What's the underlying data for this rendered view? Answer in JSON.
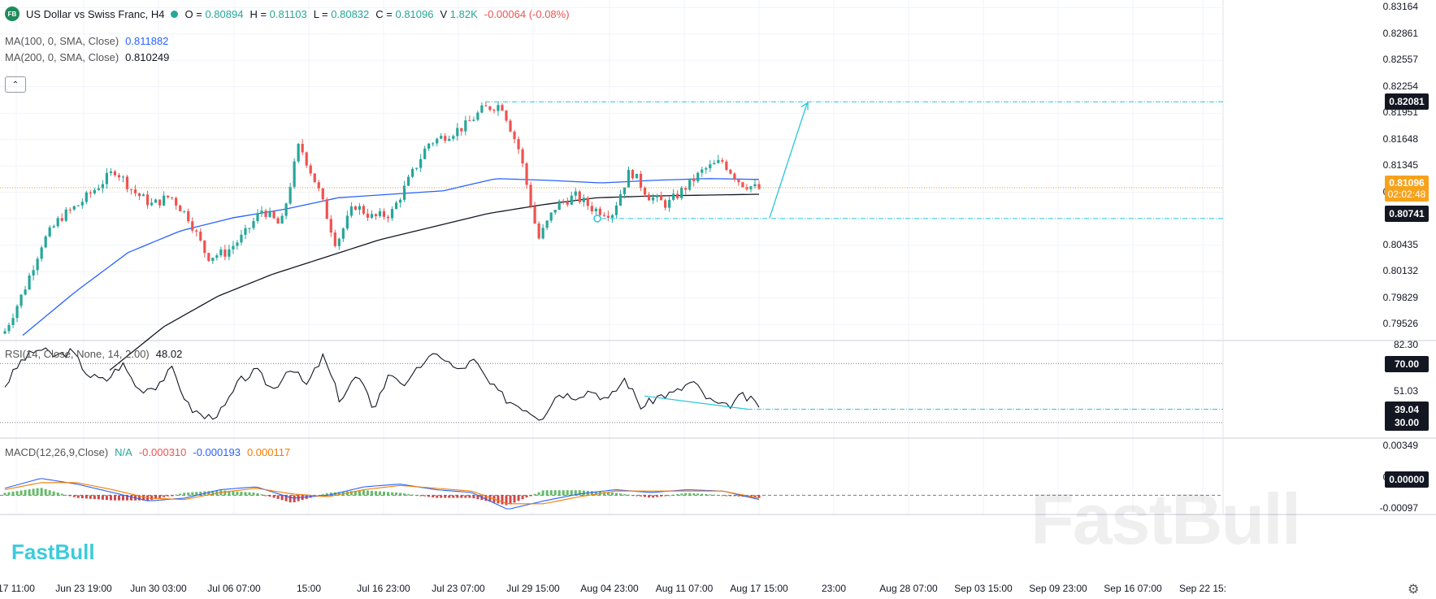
{
  "header": {
    "logo_text": "FB",
    "title": "US Dollar vs Swiss Franc, H4",
    "open_label": "O =",
    "open": "0.80894",
    "high_label": "H =",
    "high": "0.81103",
    "low_label": "L =",
    "low": "0.80832",
    "close_label": "C =",
    "close": "0.81096",
    "volume_label": "V",
    "volume": "1.82K",
    "change": "-0.00064 (-0.08%)"
  },
  "indicators": {
    "ma100_label": "MA(100, 0, SMA, Close)",
    "ma100_value": "0.811882",
    "ma200_label": "MA(200, 0, SMA, Close)",
    "ma200_value": "0.810249",
    "rsi_label": "RSI(14, Close, None, 14, 2.00)",
    "rsi_value": "48.02",
    "macd_label": "MACD(12,26,9,Close)",
    "macd_na": "N/A",
    "macd_v1": "-0.000310",
    "macd_v2": "-0.000193",
    "macd_v3": "0.000117",
    "collapse_icon": "chevron-up-icon"
  },
  "tags": {
    "target": "0.82081",
    "current_price": "0.81096",
    "countdown": "02:02:48",
    "support": "0.80741",
    "rsi_70": "70.00",
    "rsi_level": "39.04",
    "rsi_30": "30.00",
    "macd_zero": "0.00000"
  },
  "watermark": {
    "large": "FastBull",
    "small": "FastBull"
  },
  "settings_icon": "gear-icon",
  "colors": {
    "up": "#26a69a",
    "down": "#ef5350",
    "ma100": "#2962ff",
    "ma200": "#131722",
    "drawing": "#26c6da",
    "tag_dark": "#131722",
    "price_tag": "#f7a21b",
    "macd_line": "#2962ff",
    "signal_line": "#f57c00"
  },
  "chart_data": [
    {
      "type": "candlestick",
      "name": "USD/CHF H4",
      "price_axis_ticks": [
        "0.83164",
        "0.82861",
        "0.82557",
        "0.82254",
        "0.81951",
        "0.81648",
        "0.81345",
        "0.81042",
        "0.80741",
        "0.80435",
        "0.80132",
        "0.79829",
        "0.79526"
      ],
      "ylim": [
        0.7935,
        0.8325
      ],
      "time_axis_labels": [
        "17 11:00",
        "Jun 23 19:00",
        "Jun 30 03:00",
        "Jul 06 07:00",
        "15:00",
        "Jul 16 23:00",
        "Jul 23 07:00",
        "Jul 29 15:00",
        "Aug 04 23:00",
        "Aug 11 07:00",
        "Aug 17 15:00",
        "23:00",
        "Aug 28 07:00",
        "Sep 03 15:00",
        "Sep 09 23:00",
        "Sep 16 07:00",
        "Sep 22 15:"
      ],
      "ohlc_keyframes": [
        0.7945,
        0.799,
        0.8045,
        0.8075,
        0.809,
        0.811,
        0.813,
        0.8105,
        0.809,
        0.81,
        0.8075,
        0.803,
        0.8035,
        0.8055,
        0.8085,
        0.8065,
        0.816,
        0.811,
        0.8045,
        0.809,
        0.8075,
        0.808,
        0.812,
        0.816,
        0.817,
        0.818,
        0.82,
        0.8205,
        0.815,
        0.805,
        0.809,
        0.81,
        0.8085,
        0.808,
        0.813,
        0.81,
        0.809,
        0.811,
        0.813,
        0.814,
        0.8115,
        0.8108
      ],
      "ma100_keyframes": [
        0.794,
        0.799,
        0.8035,
        0.806,
        0.8075,
        0.8085,
        0.8098,
        0.8102,
        0.8106,
        0.812,
        0.8118,
        0.8115,
        0.8118,
        0.812,
        0.8119
      ],
      "ma200_keyframes": [
        0.79,
        0.795,
        0.7985,
        0.801,
        0.803,
        0.805,
        0.8065,
        0.808,
        0.809,
        0.8098,
        0.81,
        0.8101,
        0.8102
      ],
      "horizontal_lines": [
        0.82081,
        0.80741
      ],
      "current_price": 0.81096,
      "projection": {
        "from": 0.8075,
        "to": 0.8208
      }
    },
    {
      "type": "line",
      "name": "RSI",
      "levels": [
        70,
        30
      ],
      "rsi_axis_ticks": [
        "82.30",
        "51.03"
      ],
      "ylim": [
        20,
        85
      ],
      "keyframes": [
        55,
        72,
        80,
        75,
        78,
        62,
        58,
        70,
        52,
        55,
        66,
        40,
        33,
        38,
        58,
        65,
        52,
        68,
        55,
        75,
        45,
        62,
        40,
        64,
        55,
        72,
        76,
        65,
        72,
        55,
        45,
        40,
        33,
        50,
        48,
        52,
        45,
        60,
        40,
        48,
        50,
        58,
        45,
        40,
        48,
        42
      ],
      "trendline": [
        48,
        39
      ]
    },
    {
      "type": "bar",
      "name": "MACD",
      "macd_axis_ticks": [
        "0.00349",
        "0.00126",
        "0.00000",
        "-0.00097"
      ],
      "ylim": [
        -0.0013,
        0.004
      ],
      "macd_keyframes": [
        0.0005,
        0.0012,
        0.0008,
        0.0002,
        -0.0004,
        -0.0002,
        0.0004,
        0.0006,
        -0.0002,
        0.0,
        0.0006,
        0.0008,
        0.0004,
        0.0002,
        -0.001,
        -0.0004,
        0.0001,
        0.0004,
        0.0002,
        0.0004,
        0.0003,
        -0.0003
      ],
      "signal_keyframes": [
        0.0004,
        0.0009,
        0.0009,
        0.0004,
        -0.0002,
        -0.0003,
        0.0002,
        0.0005,
        0.0001,
        -0.0001,
        0.0004,
        0.0007,
        0.0005,
        0.0003,
        -0.0006,
        -0.0006,
        -0.0001,
        0.0003,
        0.0003,
        0.0003,
        0.0003,
        -0.0002
      ]
    }
  ]
}
